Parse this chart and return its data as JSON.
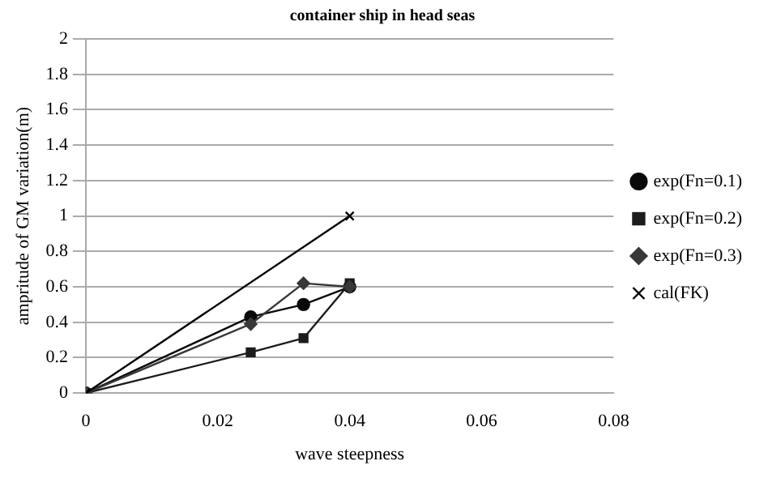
{
  "chart_data": {
    "type": "line",
    "title": "container ship in head seas",
    "xlabel": "wave steepness",
    "ylabel": "ampritude of GM variation(m)",
    "xlim": [
      0,
      0.08
    ],
    "xticks": [
      0,
      0.02,
      0.04,
      0.06,
      0.08
    ],
    "ylim": [
      0,
      2
    ],
    "yticks": [
      0,
      0.2,
      0.4,
      0.6,
      0.8,
      1,
      1.2,
      1.4,
      1.6,
      1.8,
      2
    ],
    "grid": "y",
    "legend": "right",
    "series": [
      {
        "name": "exp(Fn=0.1)",
        "color": "#0a0a0a",
        "marker": "circle",
        "x": [
          0,
          0.025,
          0.033,
          0.04
        ],
        "values": [
          0,
          0.43,
          0.5,
          0.6
        ]
      },
      {
        "name": "exp(Fn=0.2)",
        "color": "#1c1c1c",
        "marker": "square",
        "x": [
          0,
          0.025,
          0.033,
          0.04
        ],
        "values": [
          0,
          0.23,
          0.31,
          0.62
        ]
      },
      {
        "name": "exp(Fn=0.3)",
        "color": "#383838",
        "marker": "diamond",
        "x": [
          0,
          0.025,
          0.033,
          0.04
        ],
        "values": [
          0,
          0.39,
          0.62,
          0.6
        ]
      },
      {
        "name": "cal(FK)",
        "color": "#000000",
        "marker": "cross",
        "x": [
          0,
          0.04
        ],
        "values": [
          0,
          1.0
        ]
      }
    ]
  }
}
